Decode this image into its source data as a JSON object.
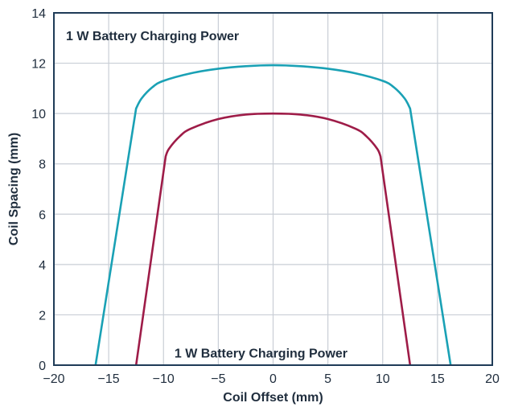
{
  "chart_data": {
    "type": "line",
    "title": "",
    "xlabel": "Coil Offset (mm)",
    "ylabel": "Coil Spacing (mm)",
    "xlim": [
      -20,
      20
    ],
    "ylim": [
      0,
      14
    ],
    "xticks": [
      -20,
      -15,
      -10,
      -5,
      0,
      5,
      10,
      15,
      20
    ],
    "xtick_labels": [
      "−20",
      "−15",
      "−10",
      "−5",
      "0",
      "5",
      "10",
      "15",
      "20"
    ],
    "yticks": [
      0,
      2,
      4,
      6,
      8,
      10,
      12,
      14
    ],
    "ytick_labels": [
      "0",
      "2",
      "4",
      "6",
      "8",
      "10",
      "12",
      "14"
    ],
    "grid": true,
    "legend": "none",
    "annotations": [
      {
        "text": "1 W Battery Charging Power",
        "x": -18.9,
        "y": 13.1
      },
      {
        "text": "1 W Battery Charging Power",
        "x": -9,
        "y": 0.5
      }
    ],
    "series": [
      {
        "color": "#1aa1b5",
        "x": [
          -16.2,
          -12.5,
          -12.0,
          -11.0,
          -10.0,
          -7.5,
          -5.0,
          -2.5,
          0,
          2.5,
          5.0,
          7.5,
          10.0,
          11.0,
          12.0,
          12.5,
          16.2
        ],
        "y": [
          0,
          10.2,
          10.6,
          11.05,
          11.3,
          11.6,
          11.78,
          11.88,
          11.92,
          11.88,
          11.78,
          11.6,
          11.3,
          11.05,
          10.6,
          10.2,
          0
        ]
      },
      {
        "color": "#9e1c48",
        "x": [
          -12.5,
          -9.8,
          -9.5,
          -8.5,
          -7.5,
          -5.0,
          -2.5,
          0,
          2.5,
          5.0,
          7.5,
          8.5,
          9.5,
          9.8,
          12.5
        ],
        "y": [
          0,
          8.3,
          8.6,
          9.1,
          9.4,
          9.78,
          9.96,
          10.0,
          9.96,
          9.78,
          9.4,
          9.1,
          8.6,
          8.3,
          0
        ]
      }
    ]
  }
}
